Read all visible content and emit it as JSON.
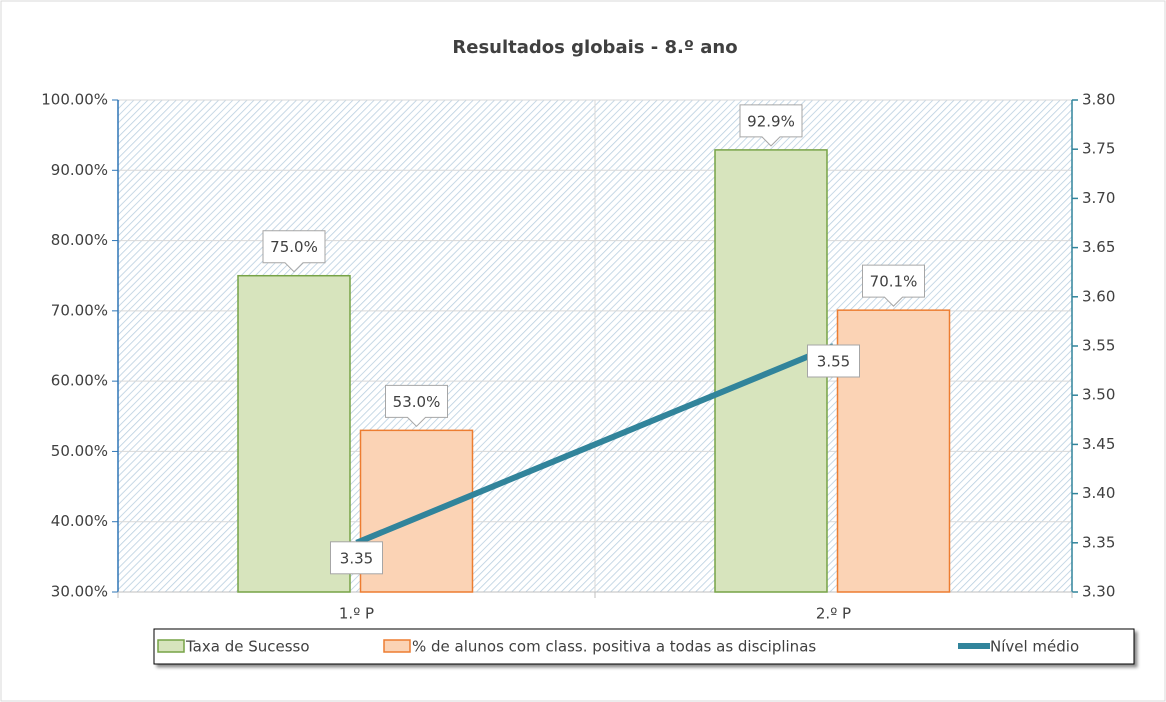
{
  "chart_data": {
    "type": "bar",
    "title": "Resultados globais - 8.º ano",
    "categories": [
      "1.º P",
      "2.º P"
    ],
    "series": [
      {
        "name": "Taxa de Sucesso",
        "type": "bar",
        "color": "#d7e4bd",
        "edgecolor": "#77a347",
        "values": [
          75.0,
          92.9
        ],
        "value_labels": [
          "75.0%",
          "92.9%"
        ]
      },
      {
        "name": "% de alunos com class. positiva a todas as disciplinas",
        "type": "bar",
        "color": "#fbd3b5",
        "edgecolor": "#ed7d31",
        "values": [
          53.0,
          70.1
        ],
        "value_labels": [
          "53.0%",
          "70.1%"
        ]
      },
      {
        "name": "Nível médio",
        "type": "line",
        "color": "#31849b",
        "axis": "y2",
        "values": [
          3.35,
          3.55
        ]
      }
    ],
    "ylim": [
      30,
      100
    ],
    "yticks": [
      {
        "value": 30,
        "label": "30.00%"
      },
      {
        "value": 40,
        "label": "40.00%"
      },
      {
        "value": 50,
        "label": "50.00%"
      },
      {
        "value": 60,
        "label": "60.00%"
      },
      {
        "value": 70,
        "label": "70.00%"
      },
      {
        "value": 80,
        "label": "80.00%"
      },
      {
        "value": 90,
        "label": "90.00%"
      },
      {
        "value": 100,
        "label": "100.00%"
      }
    ],
    "y2lim": [
      3.3,
      3.8
    ],
    "y2ticks": [
      {
        "value": 3.3,
        "label": "3.30"
      },
      {
        "value": 3.35,
        "label": "3.35"
      },
      {
        "value": 3.4,
        "label": "3.40"
      },
      {
        "value": 3.45,
        "label": "3.45"
      },
      {
        "value": 3.5,
        "label": "3.50"
      },
      {
        "value": 3.55,
        "label": "3.55"
      },
      {
        "value": 3.6,
        "label": "3.60"
      },
      {
        "value": 3.65,
        "label": "3.65"
      },
      {
        "value": 3.7,
        "label": "3.70"
      },
      {
        "value": 3.75,
        "label": "3.75"
      },
      {
        "value": 3.8,
        "label": "3.80"
      }
    ],
    "grid": true,
    "legend": "bottom"
  }
}
